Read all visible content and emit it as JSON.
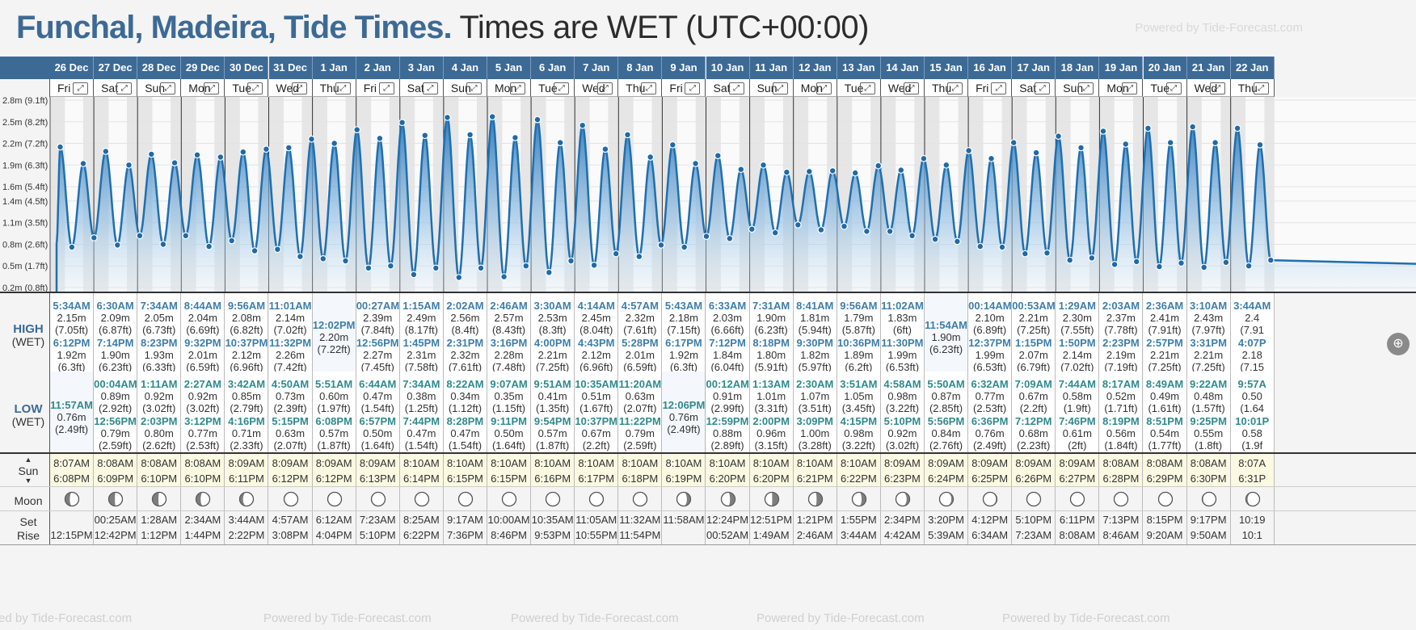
{
  "header": {
    "location": "Funchal, Madeira, Tide Times.",
    "subtitle": "Times are WET (UTC+00:00)",
    "powered": "Powered by Tide-Forecast.com"
  },
  "labels": {
    "high": "HIGH",
    "low": "LOW",
    "tz": "(WET)",
    "sun": "Sun",
    "moon": "Moon",
    "set": "Set",
    "rise": "Rise"
  },
  "footer": {
    "powered": [
      "ed by Tide-Forecast.com",
      "Powered by Tide-Forecast.com",
      "Powered by Tide-Forecast.com",
      "Powered by Tide-Forecast.com",
      "Powered by Tide-Forecast.com"
    ]
  },
  "days": [
    {
      "date": "26 Dec",
      "dow": "Fri",
      "high": [
        {
          "t": "5:34AM",
          "m": "2.15m",
          "f": "(7.05ft)"
        },
        {
          "t": "6:12PM",
          "m": "1.92m",
          "f": "(6.3ft)"
        }
      ],
      "low": [
        {
          "t": "11:57AM",
          "m": "0.76m",
          "f": "(2.49ft)"
        }
      ],
      "sunrise": "8:07AM",
      "sunset": "6:08PM",
      "moon_set": "",
      "moon_rise": "12:15PM"
    },
    {
      "date": "27 Dec",
      "dow": "Sat",
      "high": [
        {
          "t": "6:30AM",
          "m": "2.09m",
          "f": "(6.87ft)"
        },
        {
          "t": "7:14PM",
          "m": "1.90m",
          "f": "(6.23ft)"
        }
      ],
      "low": [
        {
          "t": "00:04AM",
          "m": "0.89m",
          "f": "(2.92ft)"
        },
        {
          "t": "12:56PM",
          "m": "0.79m",
          "f": "(2.59ft)"
        }
      ],
      "sunrise": "8:08AM",
      "sunset": "6:09PM",
      "moon_set": "00:25AM",
      "moon_rise": "12:42PM"
    },
    {
      "date": "28 Dec",
      "dow": "Sun",
      "high": [
        {
          "t": "7:34AM",
          "m": "2.05m",
          "f": "(6.73ft)"
        },
        {
          "t": "8:23PM",
          "m": "1.93m",
          "f": "(6.33ft)"
        }
      ],
      "low": [
        {
          "t": "1:11AM",
          "m": "0.92m",
          "f": "(3.02ft)"
        },
        {
          "t": "2:03PM",
          "m": "0.80m",
          "f": "(2.62ft)"
        }
      ],
      "sunrise": "8:08AM",
      "sunset": "6:10PM",
      "moon_set": "1:28AM",
      "moon_rise": "1:12PM"
    },
    {
      "date": "29 Dec",
      "dow": "Mon",
      "high": [
        {
          "t": "8:44AM",
          "m": "2.04m",
          "f": "(6.69ft)"
        },
        {
          "t": "9:32PM",
          "m": "2.01m",
          "f": "(6.59ft)"
        }
      ],
      "low": [
        {
          "t": "2:27AM",
          "m": "0.92m",
          "f": "(3.02ft)"
        },
        {
          "t": "3:12PM",
          "m": "0.77m",
          "f": "(2.53ft)"
        }
      ],
      "sunrise": "8:08AM",
      "sunset": "6:10PM",
      "moon_set": "2:34AM",
      "moon_rise": "1:44PM"
    },
    {
      "date": "30 Dec",
      "dow": "Tue",
      "high": [
        {
          "t": "9:56AM",
          "m": "2.08m",
          "f": "(6.82ft)"
        },
        {
          "t": "10:37PM",
          "m": "2.12m",
          "f": "(6.96ft)"
        }
      ],
      "low": [
        {
          "t": "3:42AM",
          "m": "0.85m",
          "f": "(2.79ft)"
        },
        {
          "t": "4:16PM",
          "m": "0.71m",
          "f": "(2.33ft)"
        }
      ],
      "sunrise": "8:09AM",
      "sunset": "6:11PM",
      "moon_set": "3:44AM",
      "moon_rise": "2:22PM"
    },
    {
      "date": "31 Dec",
      "dow": "Wed",
      "high": [
        {
          "t": "11:01AM",
          "m": "2.14m",
          "f": "(7.02ft)"
        },
        {
          "t": "11:32PM",
          "m": "2.26m",
          "f": "(7.42ft)"
        }
      ],
      "low": [
        {
          "t": "4:50AM",
          "m": "0.73m",
          "f": "(2.39ft)"
        },
        {
          "t": "5:15PM",
          "m": "0.63m",
          "f": "(2.07ft)"
        }
      ],
      "sunrise": "8:09AM",
      "sunset": "6:12PM",
      "moon_set": "4:57AM",
      "moon_rise": "3:08PM"
    },
    {
      "date": "1 Jan",
      "dow": "Thu",
      "high": [
        {
          "t": "12:02PM",
          "m": "2.20m",
          "f": "(7.22ft)"
        }
      ],
      "low": [
        {
          "t": "5:51AM",
          "m": "0.60m",
          "f": "(1.97ft)"
        },
        {
          "t": "6:08PM",
          "m": "0.57m",
          "f": "(1.87ft)"
        }
      ],
      "sunrise": "8:09AM",
      "sunset": "6:12PM",
      "moon_set": "6:12AM",
      "moon_rise": "4:04PM"
    },
    {
      "date": "2 Jan",
      "dow": "Fri",
      "high": [
        {
          "t": "00:27AM",
          "m": "2.39m",
          "f": "(7.84ft)"
        },
        {
          "t": "12:56PM",
          "m": "2.27m",
          "f": "(7.45ft)"
        }
      ],
      "low": [
        {
          "t": "6:44AM",
          "m": "0.47m",
          "f": "(1.54ft)"
        },
        {
          "t": "6:57PM",
          "m": "0.50m",
          "f": "(1.64ft)"
        }
      ],
      "sunrise": "8:09AM",
      "sunset": "6:13PM",
      "moon_set": "7:23AM",
      "moon_rise": "5:10PM"
    },
    {
      "date": "3 Jan",
      "dow": "Sat",
      "high": [
        {
          "t": "1:15AM",
          "m": "2.49m",
          "f": "(8.17ft)"
        },
        {
          "t": "1:45PM",
          "m": "2.31m",
          "f": "(7.58ft)"
        }
      ],
      "low": [
        {
          "t": "7:34AM",
          "m": "0.38m",
          "f": "(1.25ft)"
        },
        {
          "t": "7:44PM",
          "m": "0.47m",
          "f": "(1.54ft)"
        }
      ],
      "sunrise": "8:10AM",
      "sunset": "6:14PM",
      "moon_set": "8:25AM",
      "moon_rise": "6:22PM"
    },
    {
      "date": "4 Jan",
      "dow": "Sun",
      "high": [
        {
          "t": "2:02AM",
          "m": "2.56m",
          "f": "(8.4ft)"
        },
        {
          "t": "2:31PM",
          "m": "2.32m",
          "f": "(7.61ft)"
        }
      ],
      "low": [
        {
          "t": "8:22AM",
          "m": "0.34m",
          "f": "(1.12ft)"
        },
        {
          "t": "8:28PM",
          "m": "0.47m",
          "f": "(1.54ft)"
        }
      ],
      "sunrise": "8:10AM",
      "sunset": "6:15PM",
      "moon_set": "9:17AM",
      "moon_rise": "7:36PM"
    },
    {
      "date": "5 Jan",
      "dow": "Mon",
      "high": [
        {
          "t": "2:46AM",
          "m": "2.57m",
          "f": "(8.43ft)"
        },
        {
          "t": "3:16PM",
          "m": "2.28m",
          "f": "(7.48ft)"
        }
      ],
      "low": [
        {
          "t": "9:07AM",
          "m": "0.35m",
          "f": "(1.15ft)"
        },
        {
          "t": "9:11PM",
          "m": "0.50m",
          "f": "(1.64ft)"
        }
      ],
      "sunrise": "8:10AM",
      "sunset": "6:15PM",
      "moon_set": "10:00AM",
      "moon_rise": "8:46PM"
    },
    {
      "date": "6 Jan",
      "dow": "Tue",
      "high": [
        {
          "t": "3:30AM",
          "m": "2.53m",
          "f": "(8.3ft)"
        },
        {
          "t": "4:00PM",
          "m": "2.21m",
          "f": "(7.25ft)"
        }
      ],
      "low": [
        {
          "t": "9:51AM",
          "m": "0.41m",
          "f": "(1.35ft)"
        },
        {
          "t": "9:54PM",
          "m": "0.57m",
          "f": "(1.87ft)"
        }
      ],
      "sunrise": "8:10AM",
      "sunset": "6:16PM",
      "moon_set": "10:35AM",
      "moon_rise": "9:53PM"
    },
    {
      "date": "7 Jan",
      "dow": "Wed",
      "high": [
        {
          "t": "4:14AM",
          "m": "2.45m",
          "f": "(8.04ft)"
        },
        {
          "t": "4:43PM",
          "m": "2.12m",
          "f": "(6.96ft)"
        }
      ],
      "low": [
        {
          "t": "10:35AM",
          "m": "0.51m",
          "f": "(1.67ft)"
        },
        {
          "t": "10:37PM",
          "m": "0.67m",
          "f": "(2.2ft)"
        }
      ],
      "sunrise": "8:10AM",
      "sunset": "6:17PM",
      "moon_set": "11:05AM",
      "moon_rise": "10:55PM"
    },
    {
      "date": "8 Jan",
      "dow": "Thu",
      "high": [
        {
          "t": "4:57AM",
          "m": "2.32m",
          "f": "(7.61ft)"
        },
        {
          "t": "5:28PM",
          "m": "2.01m",
          "f": "(6.59ft)"
        }
      ],
      "low": [
        {
          "t": "11:20AM",
          "m": "0.63m",
          "f": "(2.07ft)"
        },
        {
          "t": "11:22PM",
          "m": "0.79m",
          "f": "(2.59ft)"
        }
      ],
      "sunrise": "8:10AM",
      "sunset": "6:18PM",
      "moon_set": "11:32AM",
      "moon_rise": "11:54PM"
    },
    {
      "date": "9 Jan",
      "dow": "Fri",
      "high": [
        {
          "t": "5:43AM",
          "m": "2.18m",
          "f": "(7.15ft)"
        },
        {
          "t": "6:17PM",
          "m": "1.92m",
          "f": "(6.3ft)"
        }
      ],
      "low": [
        {
          "t": "12:06PM",
          "m": "0.76m",
          "f": "(2.49ft)"
        }
      ],
      "sunrise": "8:10AM",
      "sunset": "6:19PM",
      "moon_set": "11:58AM",
      "moon_rise": ""
    },
    {
      "date": "10 Jan",
      "dow": "Sat",
      "high": [
        {
          "t": "6:33AM",
          "m": "2.03m",
          "f": "(6.66ft)"
        },
        {
          "t": "7:12PM",
          "m": "1.84m",
          "f": "(6.04ft)"
        }
      ],
      "low": [
        {
          "t": "00:12AM",
          "m": "0.91m",
          "f": "(2.99ft)"
        },
        {
          "t": "12:59PM",
          "m": "0.88m",
          "f": "(2.89ft)"
        }
      ],
      "sunrise": "8:10AM",
      "sunset": "6:20PM",
      "moon_set": "12:24PM",
      "moon_rise": "00:52AM"
    },
    {
      "date": "11 Jan",
      "dow": "Sun",
      "high": [
        {
          "t": "7:31AM",
          "m": "1.90m",
          "f": "(6.23ft)"
        },
        {
          "t": "8:18PM",
          "m": "1.80m",
          "f": "(5.91ft)"
        }
      ],
      "low": [
        {
          "t": "1:13AM",
          "m": "1.01m",
          "f": "(3.31ft)"
        },
        {
          "t": "2:00PM",
          "m": "0.96m",
          "f": "(3.15ft)"
        }
      ],
      "sunrise": "8:10AM",
      "sunset": "6:20PM",
      "moon_set": "12:51PM",
      "moon_rise": "1:49AM"
    },
    {
      "date": "12 Jan",
      "dow": "Mon",
      "high": [
        {
          "t": "8:41AM",
          "m": "1.81m",
          "f": "(5.94ft)"
        },
        {
          "t": "9:30PM",
          "m": "1.82m",
          "f": "(5.97ft)"
        }
      ],
      "low": [
        {
          "t": "2:30AM",
          "m": "1.07m",
          "f": "(3.51ft)"
        },
        {
          "t": "3:09PM",
          "m": "1.00m",
          "f": "(3.28ft)"
        }
      ],
      "sunrise": "8:10AM",
      "sunset": "6:21PM",
      "moon_set": "1:21PM",
      "moon_rise": "2:46AM"
    },
    {
      "date": "13 Jan",
      "dow": "Tue",
      "high": [
        {
          "t": "9:56AM",
          "m": "1.79m",
          "f": "(5.87ft)"
        },
        {
          "t": "10:36PM",
          "m": "1.89m",
          "f": "(6.2ft)"
        }
      ],
      "low": [
        {
          "t": "3:51AM",
          "m": "1.05m",
          "f": "(3.45ft)"
        },
        {
          "t": "4:15PM",
          "m": "0.98m",
          "f": "(3.22ft)"
        }
      ],
      "sunrise": "8:10AM",
      "sunset": "6:22PM",
      "moon_set": "1:55PM",
      "moon_rise": "3:44AM"
    },
    {
      "date": "14 Jan",
      "dow": "Wed",
      "high": [
        {
          "t": "11:02AM",
          "m": "1.83m",
          "f": "(6ft)"
        },
        {
          "t": "11:30PM",
          "m": "1.99m",
          "f": "(6.53ft)"
        }
      ],
      "low": [
        {
          "t": "4:58AM",
          "m": "0.98m",
          "f": "(3.22ft)"
        },
        {
          "t": "5:10PM",
          "m": "0.92m",
          "f": "(3.02ft)"
        }
      ],
      "sunrise": "8:09AM",
      "sunset": "6:23PM",
      "moon_set": "2:34PM",
      "moon_rise": "4:42AM"
    },
    {
      "date": "15 Jan",
      "dow": "Thu",
      "high": [
        {
          "t": "11:54AM",
          "m": "1.90m",
          "f": "(6.23ft)"
        }
      ],
      "low": [
        {
          "t": "5:50AM",
          "m": "0.87m",
          "f": "(2.85ft)"
        },
        {
          "t": "5:56PM",
          "m": "0.84m",
          "f": "(2.76ft)"
        }
      ],
      "sunrise": "8:09AM",
      "sunset": "6:24PM",
      "moon_set": "3:20PM",
      "moon_rise": "5:39AM"
    },
    {
      "date": "16 Jan",
      "dow": "Fri",
      "high": [
        {
          "t": "00:14AM",
          "m": "2.10m",
          "f": "(6.89ft)"
        },
        {
          "t": "12:37PM",
          "m": "1.99m",
          "f": "(6.53ft)"
        }
      ],
      "low": [
        {
          "t": "6:32AM",
          "m": "0.77m",
          "f": "(2.53ft)"
        },
        {
          "t": "6:36PM",
          "m": "0.76m",
          "f": "(2.49ft)"
        }
      ],
      "sunrise": "8:09AM",
      "sunset": "6:25PM",
      "moon_set": "4:12PM",
      "moon_rise": "6:34AM"
    },
    {
      "date": "17 Jan",
      "dow": "Sat",
      "high": [
        {
          "t": "00:53AM",
          "m": "2.21m",
          "f": "(7.25ft)"
        },
        {
          "t": "1:15PM",
          "m": "2.07m",
          "f": "(6.79ft)"
        }
      ],
      "low": [
        {
          "t": "7:09AM",
          "m": "0.67m",
          "f": "(2.2ft)"
        },
        {
          "t": "7:12PM",
          "m": "0.68m",
          "f": "(2.23ft)"
        }
      ],
      "sunrise": "8:09AM",
      "sunset": "6:26PM",
      "moon_set": "5:10PM",
      "moon_rise": "7:23AM"
    },
    {
      "date": "18 Jan",
      "dow": "Sun",
      "high": [
        {
          "t": "1:29AM",
          "m": "2.30m",
          "f": "(7.55ft)"
        },
        {
          "t": "1:50PM",
          "m": "2.14m",
          "f": "(7.02ft)"
        }
      ],
      "low": [
        {
          "t": "7:44AM",
          "m": "0.58m",
          "f": "(1.9ft)"
        },
        {
          "t": "7:46PM",
          "m": "0.61m",
          "f": "(2ft)"
        }
      ],
      "sunrise": "8:09AM",
      "sunset": "6:27PM",
      "moon_set": "6:11PM",
      "moon_rise": "8:08AM"
    },
    {
      "date": "19 Jan",
      "dow": "Mon",
      "high": [
        {
          "t": "2:03AM",
          "m": "2.37m",
          "f": "(7.78ft)"
        },
        {
          "t": "2:23PM",
          "m": "2.19m",
          "f": "(7.19ft)"
        }
      ],
      "low": [
        {
          "t": "8:17AM",
          "m": "0.52m",
          "f": "(1.71ft)"
        },
        {
          "t": "8:19PM",
          "m": "0.56m",
          "f": "(1.84ft)"
        }
      ],
      "sunrise": "8:08AM",
      "sunset": "6:28PM",
      "moon_set": "7:13PM",
      "moon_rise": "8:46AM"
    },
    {
      "date": "20 Jan",
      "dow": "Tue",
      "high": [
        {
          "t": "2:36AM",
          "m": "2.41m",
          "f": "(7.91ft)"
        },
        {
          "t": "2:57PM",
          "m": "2.21m",
          "f": "(7.25ft)"
        }
      ],
      "low": [
        {
          "t": "8:49AM",
          "m": "0.49m",
          "f": "(1.61ft)"
        },
        {
          "t": "8:51PM",
          "m": "0.54m",
          "f": "(1.77ft)"
        }
      ],
      "sunrise": "8:08AM",
      "sunset": "6:29PM",
      "moon_set": "8:15PM",
      "moon_rise": "9:20AM"
    },
    {
      "date": "21 Jan",
      "dow": "Wed",
      "high": [
        {
          "t": "3:10AM",
          "m": "2.43m",
          "f": "(7.97ft)"
        },
        {
          "t": "3:31PM",
          "m": "2.21m",
          "f": "(7.25ft)"
        }
      ],
      "low": [
        {
          "t": "9:22AM",
          "m": "0.48m",
          "f": "(1.57ft)"
        },
        {
          "t": "9:25PM",
          "m": "0.55m",
          "f": "(1.8ft)"
        }
      ],
      "sunrise": "8:08AM",
      "sunset": "6:30PM",
      "moon_set": "9:17PM",
      "moon_rise": "9:50AM"
    },
    {
      "date": "22 Jan",
      "dow": "Thu",
      "high": [
        {
          "t": "3:44AM",
          "m": "2.4",
          "f": "(7.91"
        },
        {
          "t": "4:07P",
          "m": "2.18",
          "f": "(7.15"
        }
      ],
      "low": [
        {
          "t": "9:57A",
          "m": "0.50",
          "f": "(1.64"
        },
        {
          "t": "10:01P",
          "m": "0.58",
          "f": "(1.9f"
        }
      ],
      "sunrise": "8:07A",
      "sunset": "6:31P",
      "moon_set": "10:19",
      "moon_rise": "10:1"
    }
  ],
  "chart_data": {
    "type": "area",
    "y_unit": "m",
    "y_ticks": [
      "0.2m (0.8ft)",
      "0.5m (1.7ft)",
      "0.8m (2.6ft)",
      "1.1m (3.5ft)",
      "1.4m (4.5ft)",
      "1.6m (5.4ft)",
      "1.9m (6.3ft)",
      "2.2m (7.2ft)",
      "2.5m (8.2ft)",
      "2.8m (9.1ft)"
    ],
    "y_tick_values": [
      0.2,
      0.5,
      0.8,
      1.1,
      1.4,
      1.6,
      1.9,
      2.2,
      2.5,
      2.8
    ],
    "ylim": [
      0.2,
      2.8
    ],
    "x_range_days": [
      "26 Dec",
      "22 Jan"
    ],
    "start_height_m": 0.82,
    "fill_color": "#3a86c4",
    "line_color": "#1f6fb0",
    "night_shade_color": "#e6e6e6",
    "grid": true
  },
  "colors": {
    "header_blue": "#3d6a95",
    "title_blue": "#3d6a95",
    "sun_bg": "#fbf9e1"
  }
}
